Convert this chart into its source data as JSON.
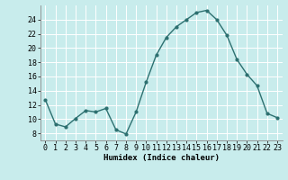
{
  "x": [
    0,
    1,
    2,
    3,
    4,
    5,
    6,
    7,
    8,
    9,
    10,
    11,
    12,
    13,
    14,
    15,
    16,
    17,
    18,
    19,
    20,
    21,
    22,
    23
  ],
  "y": [
    12.7,
    9.3,
    8.9,
    10.1,
    11.2,
    11.0,
    11.5,
    8.5,
    7.9,
    11.0,
    15.2,
    19.0,
    21.5,
    23.0,
    24.0,
    25.0,
    25.3,
    24.0,
    21.8,
    18.4,
    16.3,
    14.7,
    10.8,
    10.2
  ],
  "line_color": "#2d7070",
  "marker": "o",
  "markersize": 2.0,
  "linewidth": 1.0,
  "bg_color": "#c8ecec",
  "grid_color": "#ffffff",
  "xlabel": "Humidex (Indice chaleur)",
  "xlabel_fontsize": 6.5,
  "tick_fontsize": 6,
  "ylim": [
    7,
    26
  ],
  "xlim": [
    -0.5,
    23.5
  ],
  "yticks": [
    8,
    10,
    12,
    14,
    16,
    18,
    20,
    22,
    24
  ],
  "xticks": [
    0,
    1,
    2,
    3,
    4,
    5,
    6,
    7,
    8,
    9,
    10,
    11,
    12,
    13,
    14,
    15,
    16,
    17,
    18,
    19,
    20,
    21,
    22,
    23
  ]
}
